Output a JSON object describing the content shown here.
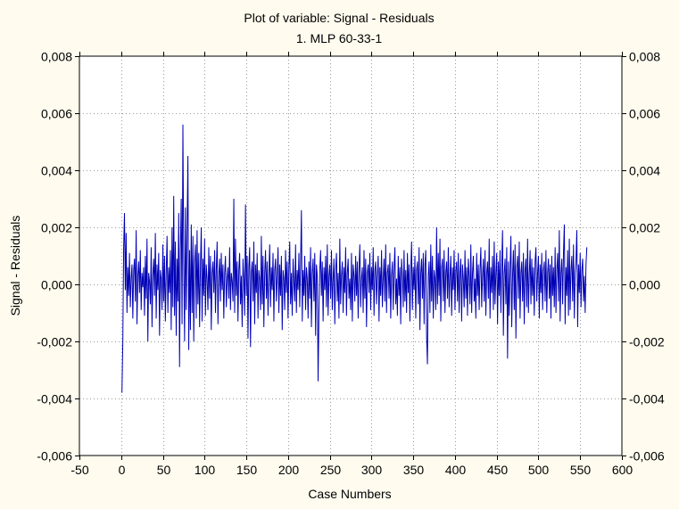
{
  "colors": {
    "background": "#fffcef",
    "plot_area": "#ffffff",
    "series": "#0000b4"
  },
  "chart_data": {
    "type": "line",
    "title": "Plot of variable: Signal - Residuals",
    "subtitle": "1. MLP 60-33-1",
    "xlabel": "Case Numbers",
    "ylabel": "Signal - Residuals",
    "xlim": [
      -50,
      600
    ],
    "ylim": [
      -0.006,
      0.008
    ],
    "xticks": [
      -50,
      0,
      50,
      100,
      150,
      200,
      250,
      300,
      350,
      400,
      450,
      500,
      550,
      600
    ],
    "yticks": [
      -0.006,
      -0.004,
      -0.002,
      0.0,
      0.002,
      0.004,
      0.006,
      0.008
    ],
    "xtick_labels": [
      "-50",
      "0",
      "50",
      "100",
      "150",
      "200",
      "250",
      "300",
      "350",
      "400",
      "450",
      "500",
      "550",
      "600"
    ],
    "ytick_labels": [
      "-0,006",
      "-0,004",
      "-0,002",
      "0,000",
      "0,002",
      "0,004",
      "0,006",
      "0,008"
    ],
    "grid": true,
    "secondary_y_axis": true,
    "series": [
      {
        "x_start": 1,
        "x_step": 1,
        "values": [
          -0.0038,
          -0.002,
          0.0013,
          0.0025,
          -0.0002,
          0.0018,
          -0.001,
          0.0006,
          -0.0004,
          0.0011,
          -0.0008,
          0.0002,
          0.0007,
          -0.0012,
          0.0005,
          0.0009,
          -0.0006,
          0.0019,
          -0.0014,
          0.0003,
          0.0008,
          -0.0003,
          0.0012,
          -0.0009,
          0.0004,
          -0.0001,
          0.0006,
          -0.0011,
          0.001,
          -0.0005,
          0.0016,
          -0.002,
          0.0004,
          0.0001,
          -0.0007,
          0.0013,
          -0.0015,
          0.0003,
          0.0009,
          -0.0004,
          0.0018,
          -0.0012,
          0.0007,
          -0.0002,
          0.0011,
          -0.0018,
          0.0005,
          0.0002,
          -0.0009,
          0.0014,
          -0.0006,
          0.001,
          -0.0013,
          0.0004,
          0.0017,
          -0.001,
          0.0006,
          -0.0003,
          0.0012,
          -0.0016,
          0.002,
          -0.0008,
          0.0031,
          -0.0011,
          0.0015,
          -0.0018,
          0.0009,
          -0.0006,
          0.0025,
          -0.0029,
          0.0012,
          0.003,
          -0.0014,
          0.0056,
          0.0008,
          -0.002,
          0.0027,
          -0.0009,
          0.0018,
          0.0045,
          -0.0023,
          0.0012,
          -0.0016,
          0.0021,
          -0.001,
          0.0017,
          -0.002,
          0.0008,
          0.0014,
          -0.0012,
          0.0019,
          -0.0007,
          0.0011,
          -0.0015,
          0.0006,
          0.002,
          -0.0013,
          0.0009,
          -0.0004,
          0.0016,
          -0.0011,
          0.0007,
          0.0002,
          -0.0009,
          0.0013,
          -0.0005,
          0.001,
          -0.0016,
          0.0004,
          0.0008,
          -0.0003,
          0.0012,
          -0.001,
          0.0005,
          0.0015,
          -0.0014,
          0.0003,
          0.0009,
          -0.0006,
          0.0011,
          -0.0002,
          0.0007,
          -0.0012,
          0.0004,
          0.001,
          -0.0008,
          0.0002,
          0.0006,
          -0.0005,
          0.0013,
          -0.0009,
          0.0004,
          0.0001,
          -0.0006,
          0.003,
          -0.001,
          0.0016,
          -0.0004,
          0.0008,
          -0.0013,
          0.0005,
          0.0011,
          -0.0007,
          0.0003,
          -0.0015,
          0.0009,
          0.0002,
          -0.0011,
          0.0028,
          -0.0004,
          0.001,
          -0.0019,
          0.0006,
          0.0013,
          -0.0022,
          0.0004,
          0.0008,
          -0.0006,
          0.0015,
          -0.0014,
          0.0007,
          -0.0003,
          0.0011,
          -0.0012,
          0.0005,
          0.0002,
          -0.0009,
          0.0017,
          -0.0007,
          0.001,
          -0.0015,
          0.0004,
          0.0012,
          -0.0005,
          0.0008,
          -0.0011,
          0.0003,
          0.0014,
          -0.0008,
          0.0006,
          -0.0002,
          0.0011,
          -0.0013,
          0.0005,
          0.0009,
          -0.0006,
          0.0003,
          0.0013,
          -0.001,
          0.0007,
          -0.0004,
          0.001,
          -0.0016,
          0.0005,
          0.0002,
          -0.0009,
          0.0012,
          -0.0003,
          0.0008,
          -0.0012,
          0.0006,
          0.0015,
          -0.0007,
          0.0004,
          -0.0011,
          0.0009,
          0.0001,
          -0.0006,
          0.0014,
          -0.001,
          0.0005,
          -0.0002,
          0.0011,
          -0.0008,
          0.0007,
          0.0026,
          -0.0013,
          0.0005,
          -0.0004,
          0.001,
          -0.0009,
          0.0006,
          0.0002,
          -0.0012,
          0.0008,
          -0.0005,
          0.0013,
          -0.0015,
          0.0004,
          0.0009,
          -0.0006,
          0.0011,
          -0.0018,
          0.0007,
          0.0003,
          -0.0034,
          -0.001,
          0.0005,
          0.0012,
          -0.0004,
          0.0008,
          -0.0013,
          0.0006,
          -0.0002,
          0.001,
          -0.0008,
          0.0014,
          -0.0011,
          0.0003,
          0.0007,
          -0.0005,
          0.0012,
          -0.0009,
          0.0002,
          0.0009,
          -0.0014,
          0.0005,
          0.0011,
          -0.0006,
          0.0004,
          -0.0012,
          0.0016,
          -0.0007,
          0.0003,
          0.0008,
          -0.001,
          0.0006,
          -0.0003,
          0.0013,
          -0.0011,
          0.0004,
          0.0009,
          -0.0005,
          0.0002,
          -0.0009,
          0.0011,
          -0.0013,
          0.0007,
          0.0003,
          -0.0006,
          0.001,
          -0.0004,
          0.0008,
          -0.0012,
          0.0005,
          0.0014,
          -0.0008,
          0.0002,
          0.0006,
          -0.001,
          0.0012,
          -0.0005,
          0.0009,
          -0.0015,
          0.0004,
          0.0007,
          -0.0003,
          0.0011,
          -0.0009,
          0.0006,
          -0.0002,
          0.0013,
          -0.0011,
          0.0005,
          0.0008,
          -0.0007,
          0.0003,
          0.001,
          -0.0013,
          0.0006,
          -0.0004,
          0.0012,
          -0.0008,
          0.0002,
          0.0009,
          -0.0006,
          0.0014,
          -0.001,
          0.0004,
          0.0007,
          -0.0005,
          0.0011,
          -0.0012,
          0.0003,
          0.0008,
          -0.0009,
          0.0005,
          0.0013,
          -0.0007,
          0.0002,
          -0.0011,
          0.001,
          -0.0004,
          0.0006,
          -0.0014,
          0.0009,
          0.0003,
          -0.0008,
          0.0012,
          -0.0006,
          0.0005,
          -0.001,
          0.0011,
          -0.0003,
          0.0007,
          -0.0013,
          0.0004,
          0.0015,
          -0.0009,
          0.0006,
          -0.0002,
          0.001,
          -0.0012,
          0.0005,
          0.0008,
          -0.0007,
          0.0013,
          -0.0016,
          0.0004,
          0.0009,
          -0.0005,
          0.0011,
          -0.0014,
          0.0007,
          0.0012,
          -0.0018,
          -0.0028,
          0.0003,
          0.0008,
          -0.001,
          0.0014,
          -0.0006,
          0.001,
          -0.0012,
          0.0005,
          0.0002,
          -0.0009,
          0.002,
          -0.0007,
          0.0011,
          -0.0004,
          0.0016,
          -0.0013,
          0.0006,
          0.0009,
          -0.0006,
          0.0012,
          -0.001,
          0.0004,
          0.0008,
          -0.0005,
          0.0013,
          -0.0008,
          0.0003,
          0.001,
          -0.0011,
          0.0006,
          -0.0002,
          0.0012,
          -0.0009,
          0.0005,
          0.0008,
          -0.0006,
          0.0011,
          -0.001,
          0.0004,
          0.0009,
          -0.0013,
          0.0007,
          0.0002,
          -0.0008,
          0.0012,
          -0.0005,
          0.0006,
          -0.0011,
          0.0009,
          0.0003,
          -0.0007,
          0.0014,
          -0.001,
          0.0004,
          0.001,
          -0.0006,
          0.0002,
          -0.0012,
          0.0011,
          -0.0004,
          0.0007,
          -0.0009,
          0.0005,
          0.0013,
          -0.0008,
          0.0003,
          0.0009,
          -0.0006,
          0.0012,
          -0.0011,
          0.0004,
          0.0008,
          -0.0005,
          0.0016,
          -0.0012,
          0.0006,
          -0.0003,
          0.001,
          -0.0009,
          0.0015,
          -0.0007,
          0.0004,
          0.0011,
          -0.0014,
          0.0008,
          -0.0004,
          0.0012,
          -0.001,
          0.0006,
          0.0019,
          -0.0018,
          0.0004,
          0.0009,
          -0.0007,
          0.0013,
          -0.0026,
          0.0008,
          -0.0011,
          0.0005,
          0.0017,
          -0.0015,
          0.0003,
          0.0012,
          -0.0009,
          0.0014,
          -0.0019,
          0.0006,
          0.001,
          -0.0005,
          0.0015,
          -0.0012,
          0.0004,
          0.0008,
          -0.0006,
          0.0011,
          -0.0014,
          0.0005,
          0.0009,
          -0.0008,
          0.0016,
          -0.001,
          0.0003,
          0.0012,
          -0.0007,
          0.0009,
          -0.0004,
          0.0006,
          -0.0011,
          0.0008,
          0.0013,
          -0.0006,
          0.0004,
          0.001,
          -0.0012,
          0.0007,
          -0.0003,
          0.0011,
          -0.0009,
          0.0005,
          0.0008,
          -0.0006,
          0.0012,
          -0.001,
          0.0004,
          0.0009,
          -0.0005,
          0.0007,
          -0.0012,
          0.001,
          -0.0004,
          0.0006,
          -0.0008,
          0.0013,
          -0.001,
          0.0005,
          0.0011,
          -0.0006,
          0.0019,
          -0.0013,
          0.0004,
          0.0009,
          -0.0007,
          0.0011,
          0.0021,
          -0.0014,
          0.0006,
          -0.0004,
          0.0012,
          -0.0011,
          0.0016,
          -0.0009,
          0.0005,
          0.001,
          -0.0006,
          0.0014,
          -0.0012,
          0.0004,
          0.0008,
          0.0019,
          -0.0015,
          0.0007,
          -0.0003,
          0.0011,
          -0.0008,
          0.0005,
          0.0009,
          -0.0006,
          0.0003,
          -0.001,
          0.0007,
          0.0013
        ]
      }
    ]
  }
}
